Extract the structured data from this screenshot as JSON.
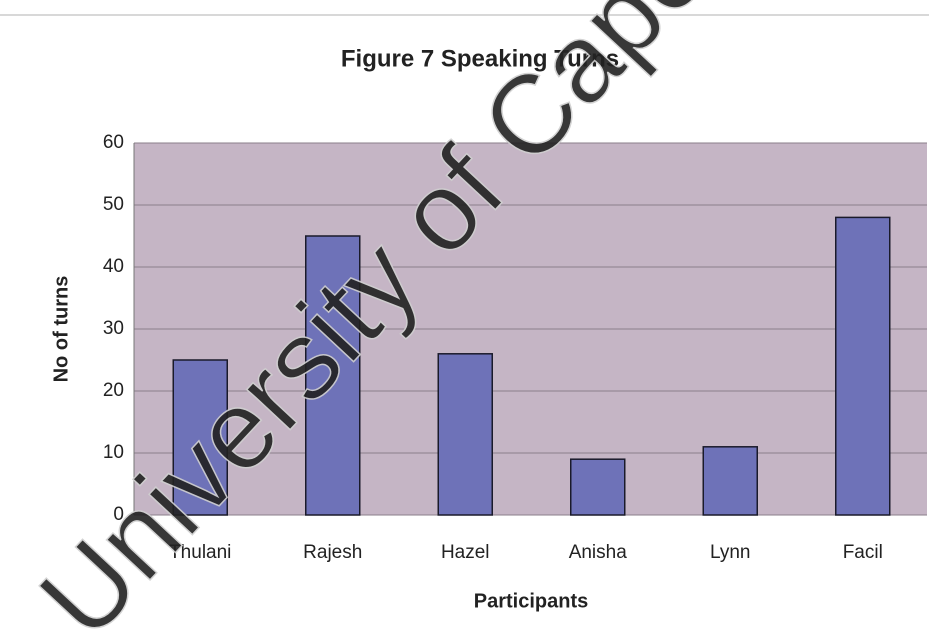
{
  "chart_data": {
    "type": "bar",
    "title": "Figure 7 Speaking Turns",
    "xlabel": "Participants",
    "ylabel": "No of turns",
    "categories": [
      "Thulani",
      "Rajesh",
      "Hazel",
      "Anisha",
      "Lynn",
      "Facil"
    ],
    "values": [
      25,
      45,
      26,
      9,
      11,
      48
    ],
    "color": "#6e72b8",
    "ylim": [
      0,
      60
    ],
    "yticks": [
      0,
      10,
      20,
      30,
      40,
      50,
      60
    ],
    "grid": true,
    "watermark": "University of Cape"
  }
}
